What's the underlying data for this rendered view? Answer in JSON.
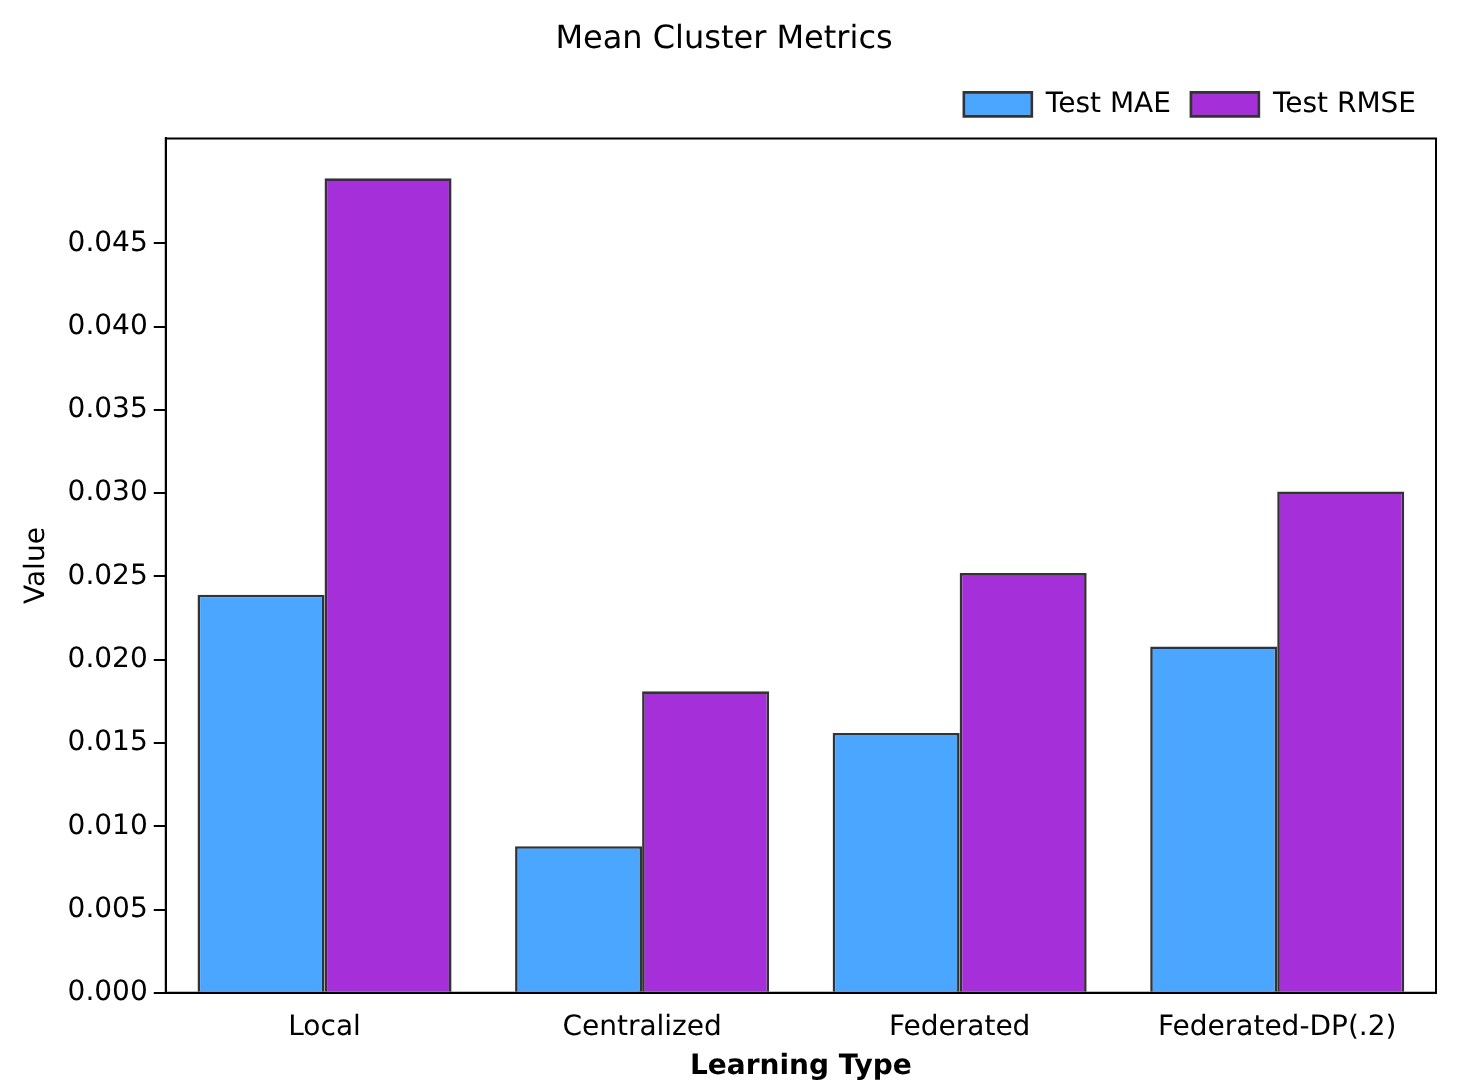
{
  "chart_data": {
    "type": "bar",
    "title": "Mean Cluster Metrics",
    "xlabel": "Learning Type",
    "ylabel": "Value",
    "categories": [
      "Local",
      "Centralized",
      "Federated",
      "Federated-DP(.2)"
    ],
    "series": [
      {
        "name": "Test MAE",
        "color": "#4ba6ff",
        "values": [
          0.0239,
          0.0088,
          0.0156,
          0.0208
        ]
      },
      {
        "name": "Test RMSE",
        "color": "#a52fd9",
        "values": [
          0.0489,
          0.0181,
          0.0252,
          0.0301
        ]
      }
    ],
    "ylim": [
      0,
      0.0513
    ],
    "yticks": [
      {
        "value": 0,
        "label": "0.000"
      },
      0.005,
      {
        "value": 0.01,
        "label": "0.010"
      },
      0.015,
      {
        "value": 0.02,
        "label": "0.020"
      },
      0.025,
      {
        "value": 0.03,
        "label": "0.030"
      },
      0.035,
      {
        "value": 0.04,
        "label": "0.040"
      },
      0.045
    ],
    "grid": false,
    "legend": "top right"
  }
}
